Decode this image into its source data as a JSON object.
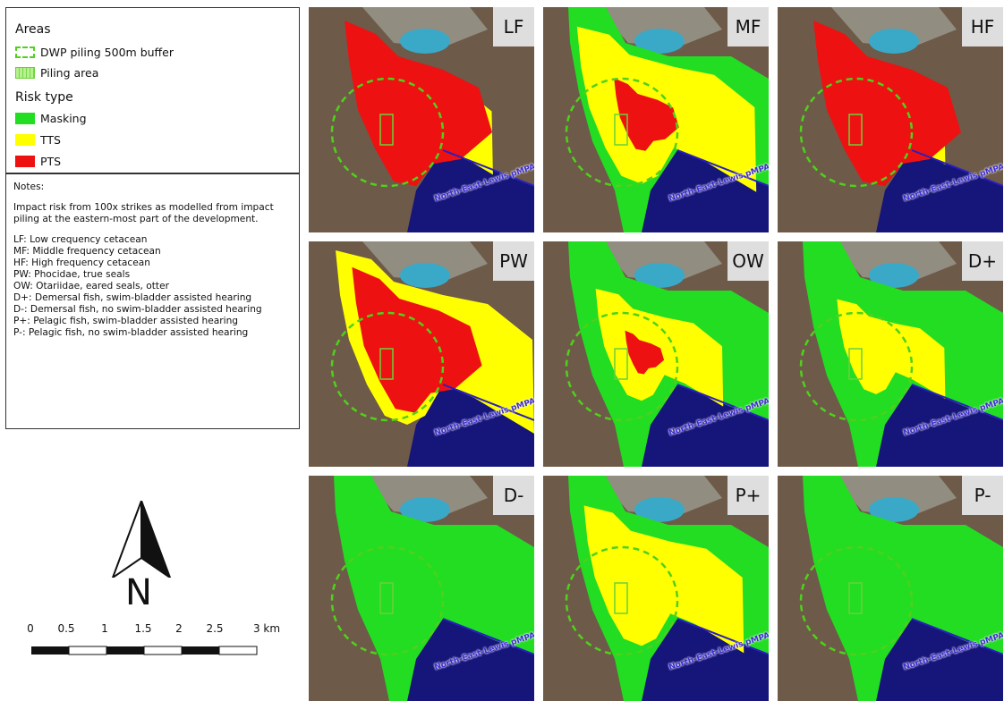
{
  "legend": {
    "areas_title": "Areas",
    "areas": [
      {
        "label": "DWP piling 500m buffer",
        "swatch": "buffer"
      },
      {
        "label": "Piling area",
        "swatch": "piling"
      }
    ],
    "risk_title": "Risk type",
    "risk_types": [
      {
        "label": "Masking",
        "color": "#22dd22"
      },
      {
        "label": "TTS",
        "color": "#ffff00"
      },
      {
        "label": "PTS",
        "color": "#ee1111"
      }
    ]
  },
  "notes": {
    "title": "Notes:",
    "description": "Impact risk from 100x strikes as modelled from impact piling at the eastern-most part of the development.",
    "definitions": [
      "LF: Low crequency cetacean",
      "MF: Middle frequency cetacean",
      "HF: High frequency cetacean",
      "PW: Phocidae, true seals",
      "OW: Otariidae, eared seals, otter",
      "D+: Demersal fish, swim-bladder assisted hearing",
      "D-: Demersal fish, no swim-bladder assisted hearing",
      "P+: Pelagic fish, swim-bladder assisted hearing",
      "P-: Pelagic fish, no swim-bladder assisted hearing"
    ]
  },
  "mpa_label": "North-East-Lewis pMPA",
  "north_label": "N",
  "scale_bar": {
    "ticks": [
      "0",
      "0.5",
      "1",
      "1.5",
      "2",
      "2.5",
      "3 km"
    ]
  },
  "panels": [
    {
      "label": "LF",
      "zones": {
        "masking": 0.0,
        "tts": 0.5,
        "pts": 1.0
      }
    },
    {
      "label": "MF",
      "zones": {
        "masking": 1.0,
        "tts": 0.85,
        "pts": 0.3
      }
    },
    {
      "label": "HF",
      "zones": {
        "masking": 0.0,
        "tts": 0.3,
        "pts": 1.0
      }
    },
    {
      "label": "PW",
      "zones": {
        "masking": 0.0,
        "tts": 1.0,
        "pts": 0.85
      }
    },
    {
      "label": "OW",
      "zones": {
        "masking": 1.0,
        "tts": 0.45,
        "pts": 0.08
      }
    },
    {
      "label": "D+",
      "zones": {
        "masking": 1.0,
        "tts": 0.3,
        "pts": 0.0
      }
    },
    {
      "label": "D-",
      "zones": {
        "masking": 1.0,
        "tts": 0.0,
        "pts": 0.0
      }
    },
    {
      "label": "P+",
      "zones": {
        "masking": 1.0,
        "tts": 0.7,
        "pts": 0.0
      }
    },
    {
      "label": "P-",
      "zones": {
        "masking": 1.0,
        "tts": 0.0,
        "pts": 0.0
      }
    }
  ],
  "colors": {
    "land": "#6e5a48",
    "sea": "#15157a",
    "loch": "#3aa9c8",
    "town": "#9a9a90",
    "mpa": "#2a1fc0",
    "buffer": "#4fd11c"
  }
}
